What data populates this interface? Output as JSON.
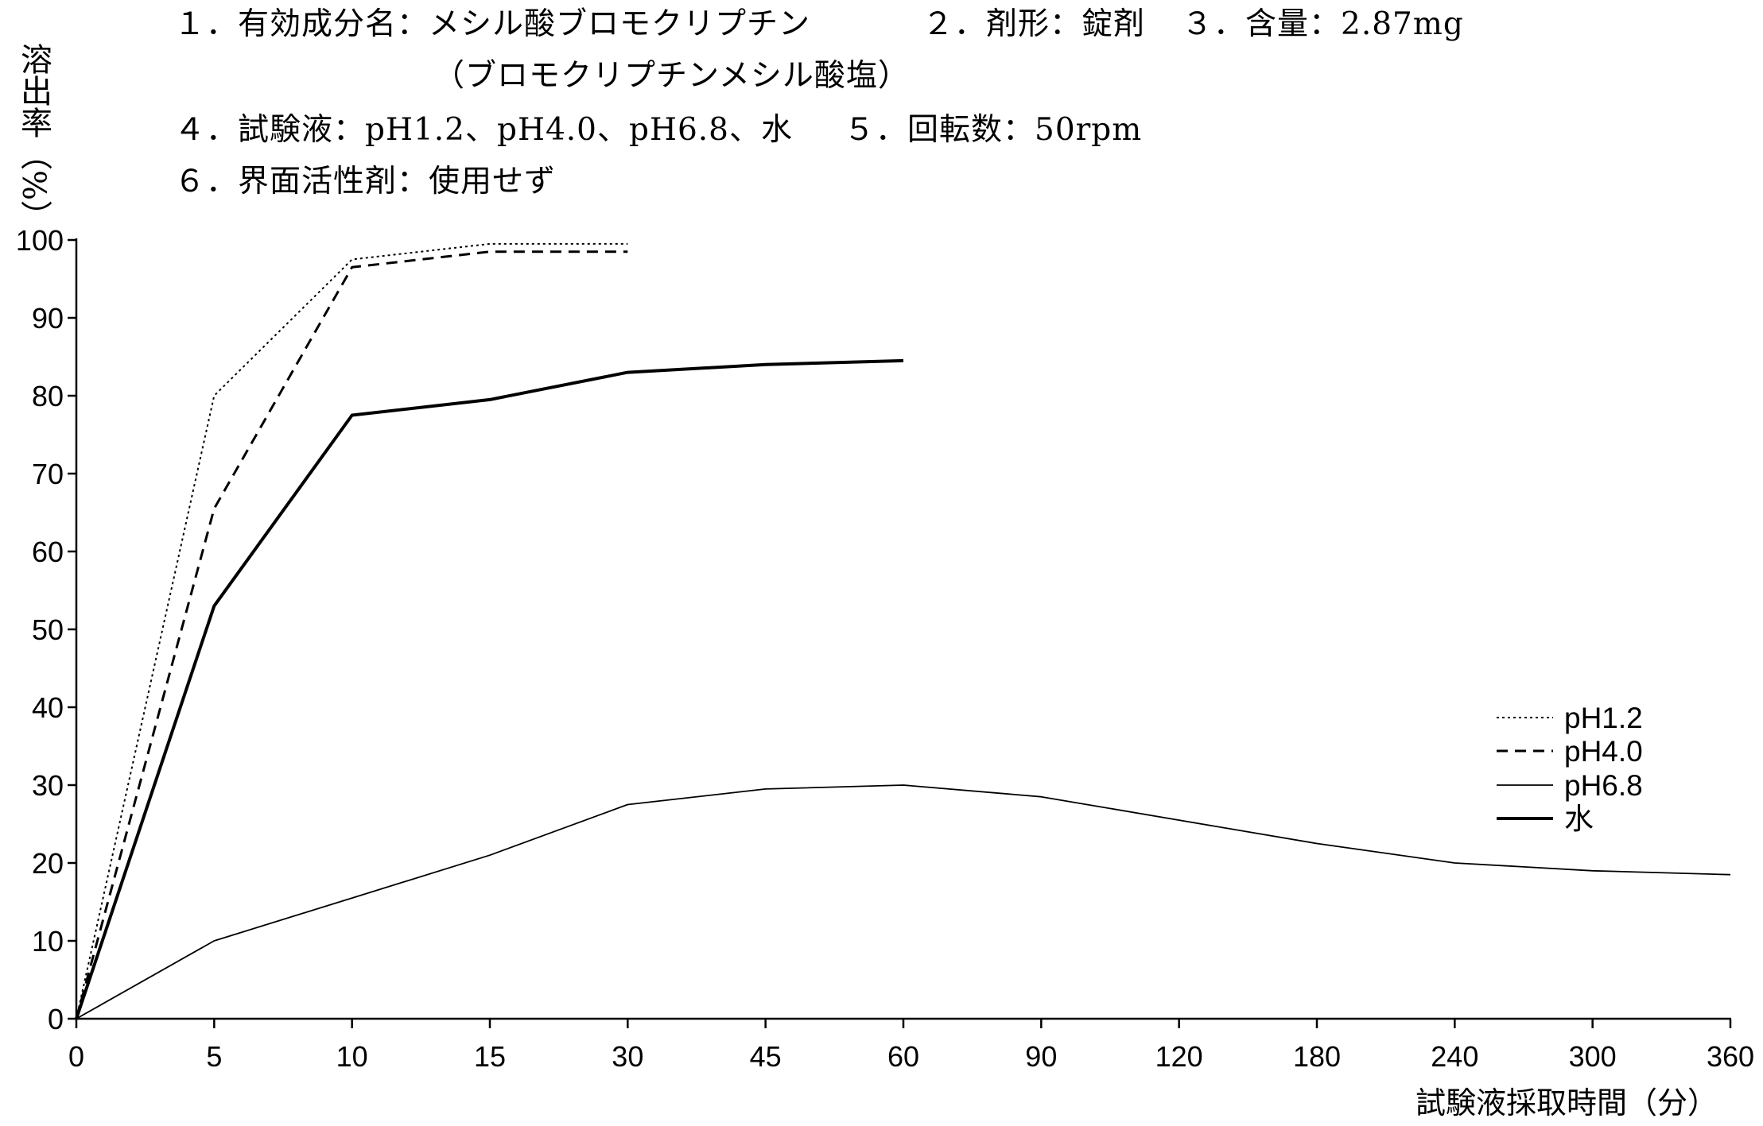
{
  "header": {
    "item1": "１．有効成分名：メシル酸ブロモクリプチン",
    "item1_note": "（ブロモクリプチンメシル酸塩）",
    "item2": "２．剤形：錠剤",
    "item3": "３．含量：2.87mg",
    "item4": "４．試験液：pH1.2、pH4.0、pH6.8、水",
    "item5": "５．回転数：50rpm",
    "item6": "６．界面活性剤：使用せず"
  },
  "chart_data": {
    "type": "line",
    "x_axis": "category",
    "x": [
      0,
      5,
      10,
      15,
      30,
      45,
      60,
      90,
      120,
      180,
      240,
      300,
      360
    ],
    "xlabel": "試験液採取時間（分）",
    "ylabel": "溶出率（%）",
    "ylim": [
      0,
      100
    ],
    "yticks": [
      0,
      10,
      20,
      30,
      40,
      50,
      60,
      70,
      80,
      90,
      100
    ],
    "grid": false,
    "legend": "right",
    "series": [
      {
        "name": "pH1.2",
        "color": "#000000",
        "values": [
          0,
          80,
          97.5,
          99.5,
          99.5,
          null,
          null,
          null,
          null,
          null,
          null,
          null,
          null
        ]
      },
      {
        "name": "pH4.0",
        "color": "#000000",
        "values": [
          0,
          65.5,
          96.5,
          98.5,
          98.5,
          null,
          null,
          null,
          null,
          null,
          null,
          null,
          null
        ]
      },
      {
        "name": "pH6.8",
        "color": "#000000",
        "values": [
          0,
          10,
          15.5,
          21,
          27.5,
          29.5,
          30,
          28.5,
          25.5,
          22.5,
          20,
          19,
          18.5
        ]
      },
      {
        "name": "水",
        "color": "#000000",
        "values": [
          0,
          53,
          77.5,
          79.5,
          83,
          84,
          84.5,
          null,
          null,
          null,
          null,
          null,
          null
        ]
      }
    ]
  }
}
